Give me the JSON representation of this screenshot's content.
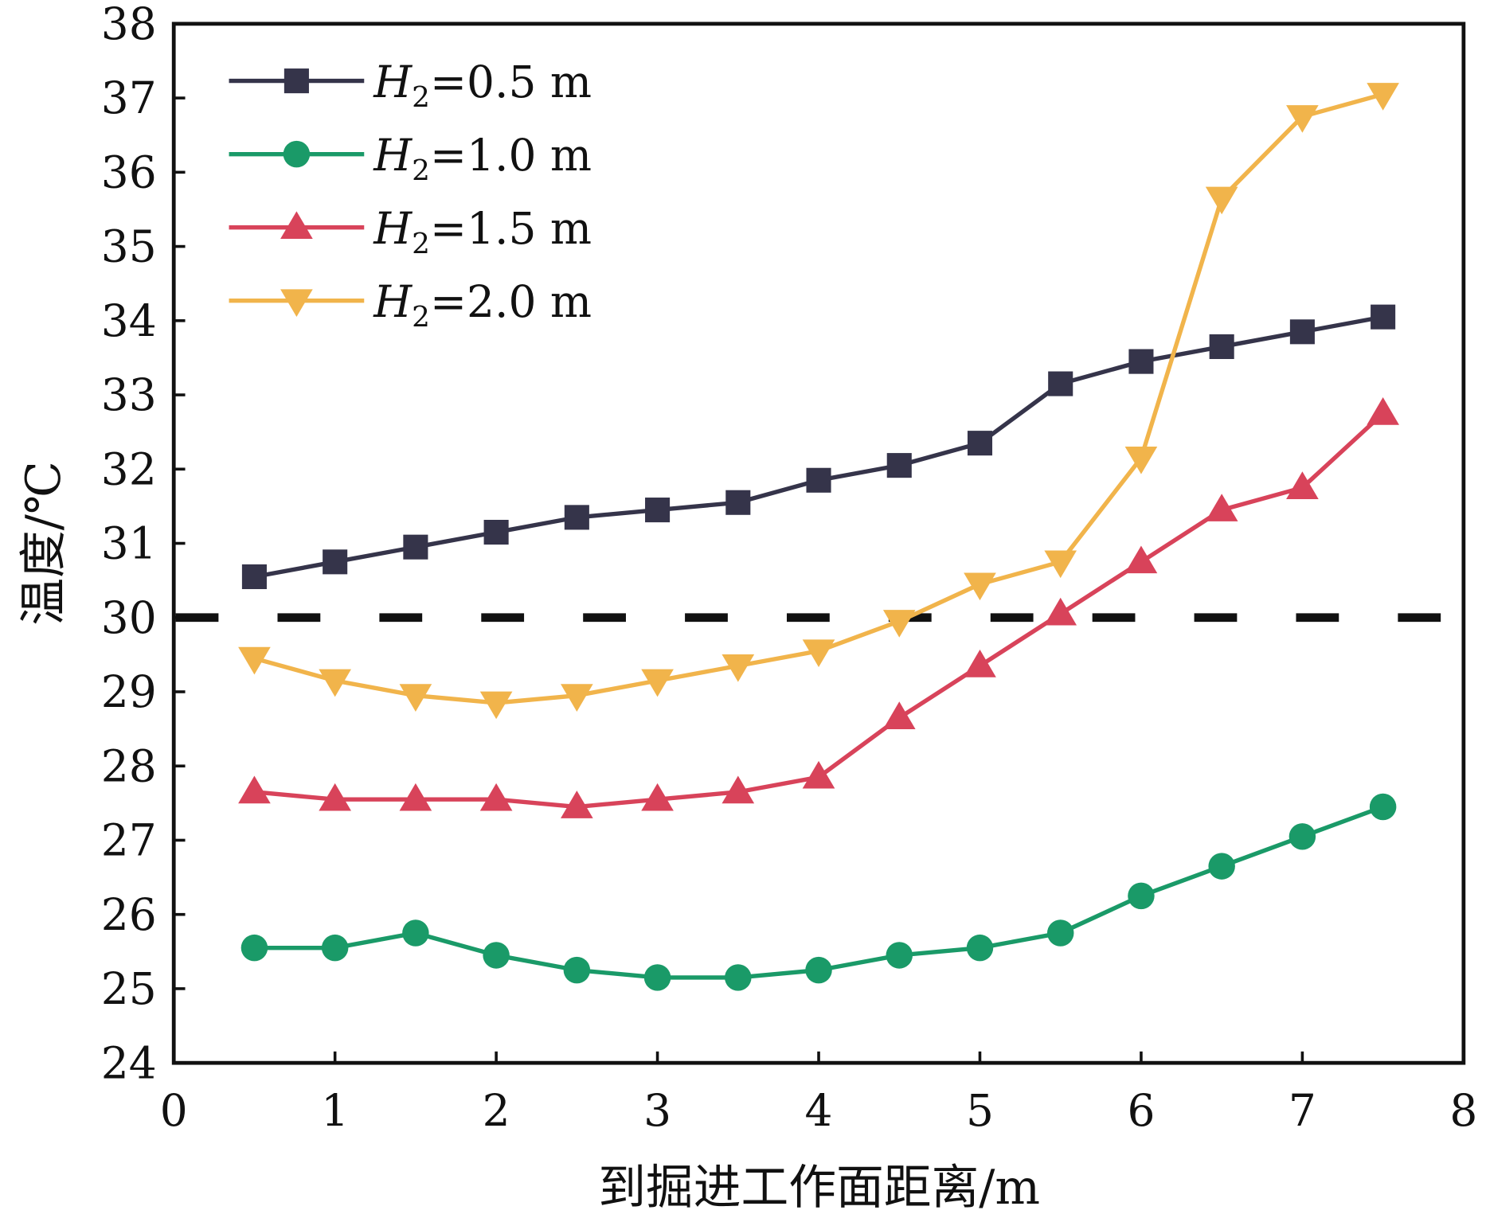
{
  "chart_data": {
    "type": "line",
    "title": "",
    "xlabel": "到掘进工作面距离/m",
    "ylabel": "温度/℃",
    "xlim": [
      0,
      8
    ],
    "ylim": [
      24,
      38
    ],
    "xticks": [
      "0",
      "1",
      "2",
      "3",
      "4",
      "5",
      "6",
      "7",
      "8"
    ],
    "yticks": [
      "24",
      "25",
      "26",
      "27",
      "28",
      "29",
      "30",
      "31",
      "32",
      "33",
      "34",
      "35",
      "36",
      "37",
      "38"
    ],
    "grid": false,
    "legend_placement": "top-left",
    "reference_line": {
      "y": 30,
      "style": "dashed",
      "color": "#111111"
    },
    "x": [
      0.5,
      1,
      1.5,
      2,
      2.5,
      3,
      3.5,
      4,
      4.5,
      5,
      5.5,
      6,
      6.5,
      7,
      7.5
    ],
    "series": [
      {
        "name": "H2=0.5 m",
        "label_var": "H",
        "label_sub": "2",
        "label_rest": "=0.5 m",
        "color": "#35344a",
        "marker": "square",
        "values": [
          30.55,
          30.75,
          30.95,
          31.15,
          31.35,
          31.45,
          31.55,
          31.85,
          32.05,
          32.35,
          33.15,
          33.45,
          33.65,
          33.85,
          34.05
        ]
      },
      {
        "name": "H2=1.0 m",
        "label_var": "H",
        "label_sub": "2",
        "label_rest": "=1.0 m",
        "color": "#1a9a68",
        "marker": "circle",
        "values": [
          25.55,
          25.55,
          25.75,
          25.45,
          25.25,
          25.15,
          25.15,
          25.25,
          25.45,
          25.55,
          25.75,
          26.25,
          26.65,
          27.05,
          27.45
        ]
      },
      {
        "name": "H2=1.5 m",
        "label_var": "H",
        "label_sub": "2",
        "label_rest": "=1.5 m",
        "color": "#d8435a",
        "marker": "triangle-up",
        "values": [
          27.65,
          27.55,
          27.55,
          27.55,
          27.45,
          27.55,
          27.65,
          27.85,
          28.65,
          29.35,
          30.05,
          30.75,
          31.45,
          31.75,
          32.75
        ]
      },
      {
        "name": "H2=2.0 m",
        "label_var": "H",
        "label_sub": "2",
        "label_rest": "=2.0 m",
        "color": "#f1b44b",
        "marker": "triangle-down",
        "values": [
          29.45,
          29.15,
          28.95,
          28.85,
          28.95,
          29.15,
          29.35,
          29.55,
          29.95,
          30.45,
          30.75,
          32.15,
          35.65,
          36.75,
          37.05
        ]
      }
    ]
  }
}
